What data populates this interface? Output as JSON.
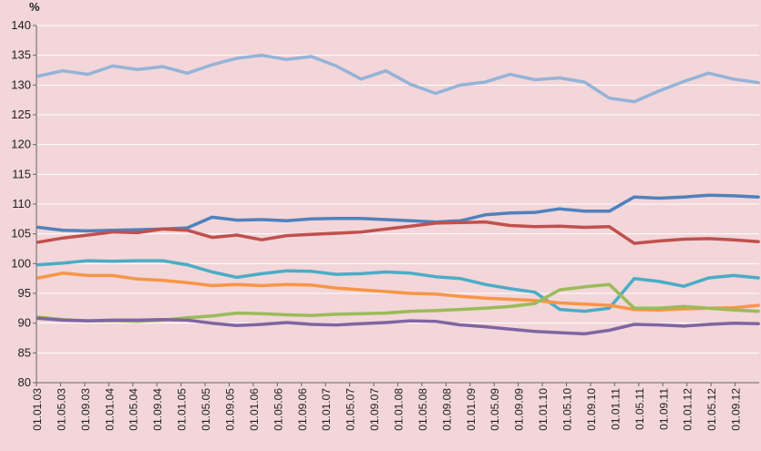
{
  "chart_data": {
    "type": "line",
    "title": "",
    "ylabel": "%",
    "xlabel": "",
    "ylim": [
      80,
      140
    ],
    "yticks": [
      80,
      85,
      90,
      95,
      100,
      105,
      110,
      115,
      120,
      125,
      130,
      135,
      140
    ],
    "xticks": [
      "01.01.03",
      "01.05.03",
      "01.09.03",
      "01.01.04",
      "01.05.04",
      "01.09.04",
      "01.01.05",
      "01.05.05",
      "01.09.05",
      "01.01.06",
      "01.05.06",
      "01.09.06",
      "01.01.07",
      "01.05.07",
      "01.09.07",
      "01.01.08",
      "01.05.08",
      "01.09.08",
      "01.01.09",
      "01.05.09",
      "01.09.09",
      "01.01.10",
      "01.05.10",
      "01.09.10",
      "01.01.11",
      "01.05.11",
      "01.09.11",
      "01.01.12",
      "01.05.12",
      "01.09.12"
    ],
    "grid": true,
    "legend": "none",
    "series": [
      {
        "color": "#95b3d7",
        "values": [
          131.5,
          132.4,
          131.8,
          133.2,
          132.6,
          133.1,
          132.0,
          133.4,
          134.5,
          135.0,
          134.3,
          134.8,
          133.2,
          131.0,
          132.4,
          130.1,
          128.6,
          130.0,
          130.5,
          131.8,
          130.9,
          131.2,
          130.5,
          127.8,
          127.2,
          129.0,
          130.6,
          132.0,
          131.0,
          130.4
        ]
      },
      {
        "color": "#4f81bd",
        "values": [
          106.1,
          105.6,
          105.5,
          105.6,
          105.7,
          105.8,
          106.0,
          107.8,
          107.3,
          107.4,
          107.2,
          107.5,
          107.6,
          107.6,
          107.4,
          107.2,
          107.0,
          107.2,
          108.2,
          108.5,
          108.6,
          109.2,
          108.8,
          108.8,
          111.2,
          111.0,
          111.2,
          111.5,
          111.4,
          111.2
        ]
      },
      {
        "color": "#c0504d",
        "values": [
          103.6,
          104.3,
          104.8,
          105.3,
          105.2,
          105.8,
          105.6,
          104.4,
          104.8,
          104.0,
          104.7,
          104.9,
          105.1,
          105.3,
          105.8,
          106.3,
          106.8,
          106.9,
          107.0,
          106.4,
          106.2,
          106.3,
          106.1,
          106.2,
          103.4,
          103.8,
          104.1,
          104.2,
          104.0,
          103.7
        ]
      },
      {
        "color": "#4bacc6",
        "values": [
          99.8,
          100.1,
          100.5,
          100.4,
          100.5,
          100.5,
          99.8,
          98.6,
          97.7,
          98.3,
          98.8,
          98.7,
          98.2,
          98.3,
          98.6,
          98.4,
          97.8,
          97.5,
          96.5,
          95.8,
          95.2,
          92.3,
          92.0,
          92.5,
          97.5,
          97.0,
          96.2,
          97.6,
          98.0,
          97.6
        ]
      },
      {
        "color": "#f79646",
        "values": [
          97.6,
          98.4,
          98.0,
          98.0,
          97.4,
          97.2,
          96.8,
          96.3,
          96.5,
          96.3,
          96.5,
          96.4,
          95.9,
          95.6,
          95.3,
          95.0,
          94.9,
          94.5,
          94.2,
          94.0,
          93.8,
          93.4,
          93.2,
          93.0,
          92.3,
          92.2,
          92.4,
          92.5,
          92.6,
          93.0
        ]
      },
      {
        "color": "#9bbb59",
        "values": [
          91.0,
          90.6,
          90.4,
          90.4,
          90.3,
          90.5,
          90.9,
          91.2,
          91.7,
          91.6,
          91.4,
          91.3,
          91.5,
          91.6,
          91.7,
          92.0,
          92.1,
          92.3,
          92.5,
          92.8,
          93.3,
          95.6,
          96.1,
          96.5,
          92.5,
          92.5,
          92.8,
          92.5,
          92.2,
          92.0
        ]
      },
      {
        "color": "#8064a2",
        "values": [
          90.8,
          90.5,
          90.4,
          90.5,
          90.5,
          90.6,
          90.5,
          90.0,
          89.6,
          89.8,
          90.1,
          89.8,
          89.7,
          89.9,
          90.1,
          90.4,
          90.3,
          89.7,
          89.4,
          89.0,
          88.6,
          88.4,
          88.2,
          88.8,
          89.8,
          89.7,
          89.5,
          89.8,
          90.0,
          89.9
        ]
      }
    ]
  }
}
